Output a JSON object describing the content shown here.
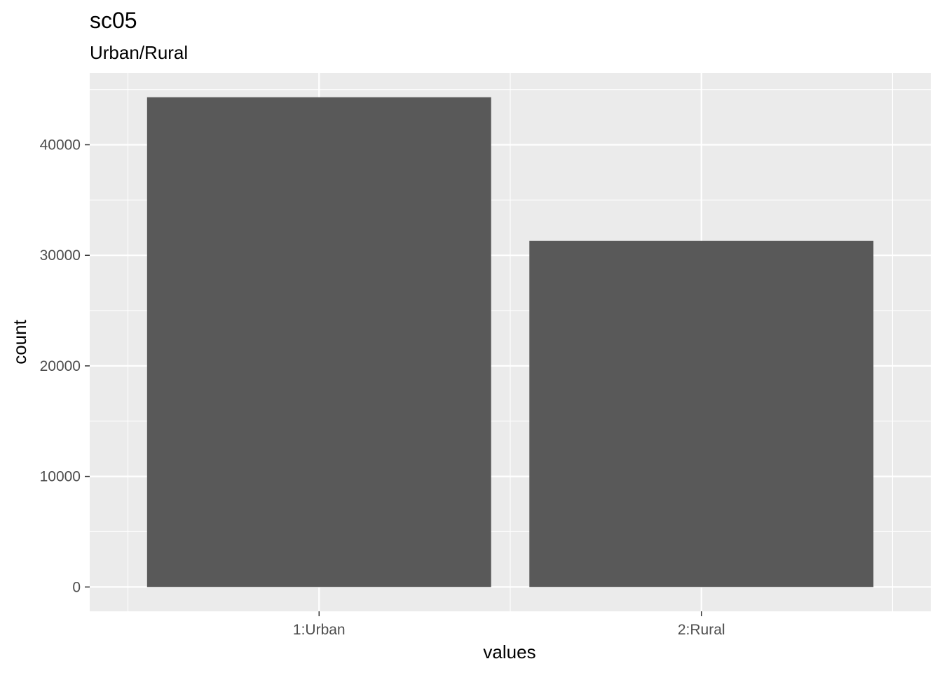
{
  "chart_data": {
    "type": "bar",
    "title": "sc05",
    "subtitle": "Urban/Rural",
    "xlabel": "values",
    "ylabel": "count",
    "categories": [
      "1:Urban",
      "2:Rural"
    ],
    "values": [
      44300,
      31300
    ],
    "ylim": [
      -2200,
      46500
    ],
    "yticks": [
      0,
      10000,
      20000,
      30000,
      40000
    ],
    "ytick_labels": [
      "0",
      "10000",
      "20000",
      "30000",
      "40000"
    ],
    "grid": true,
    "legend": "none",
    "colors": {
      "bar": "#595959",
      "panel": "#ebebeb",
      "grid": "#ffffff",
      "tick_text": "#4d4d4d",
      "tick": "#333333"
    }
  }
}
